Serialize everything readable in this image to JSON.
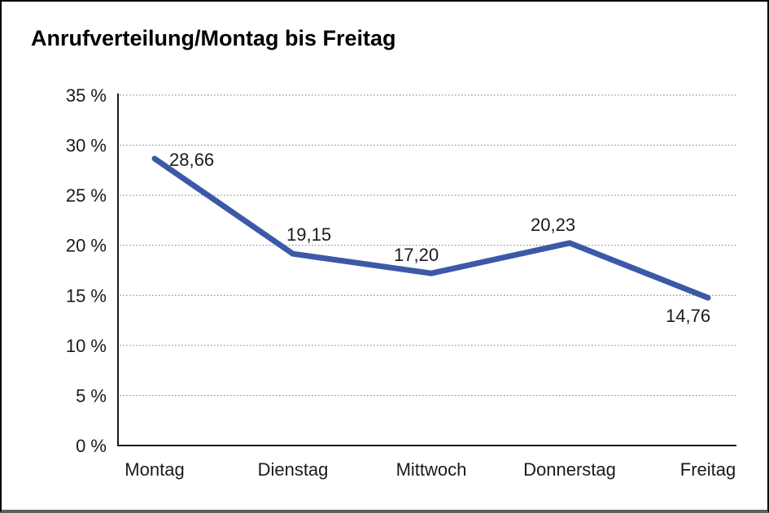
{
  "title": "Anrufverteilung/Montag bis Freitag",
  "chart_data": {
    "type": "line",
    "title": "Anrufverteilung/Montag bis Freitag",
    "categories": [
      "Montag",
      "Dienstag",
      "Mittwoch",
      "Donnerstag",
      "Freitag"
    ],
    "values": [
      28.66,
      19.15,
      17.2,
      20.23,
      14.76
    ],
    "value_labels": [
      "28,66",
      "19,15",
      "17,20",
      "20,23",
      "14,76"
    ],
    "xlabel": "",
    "ylabel": "",
    "ylim": [
      0,
      35
    ],
    "ytick_step": 5,
    "ytick_labels": [
      "0 %",
      "5 %",
      "10 %",
      "15 %",
      "20 %",
      "25 %",
      "30 %",
      "35 %"
    ],
    "grid": "horizontal-dotted",
    "legend": "none",
    "series_name": "Anrufverteilung"
  },
  "colors": {
    "line": "#3B59A7",
    "grid": "#777777",
    "axis": "#1a1a1a",
    "text": "#1a1a1a",
    "background": "#ffffff",
    "frame_border": "#000000",
    "bottom_bar": "#5f5f5f"
  }
}
